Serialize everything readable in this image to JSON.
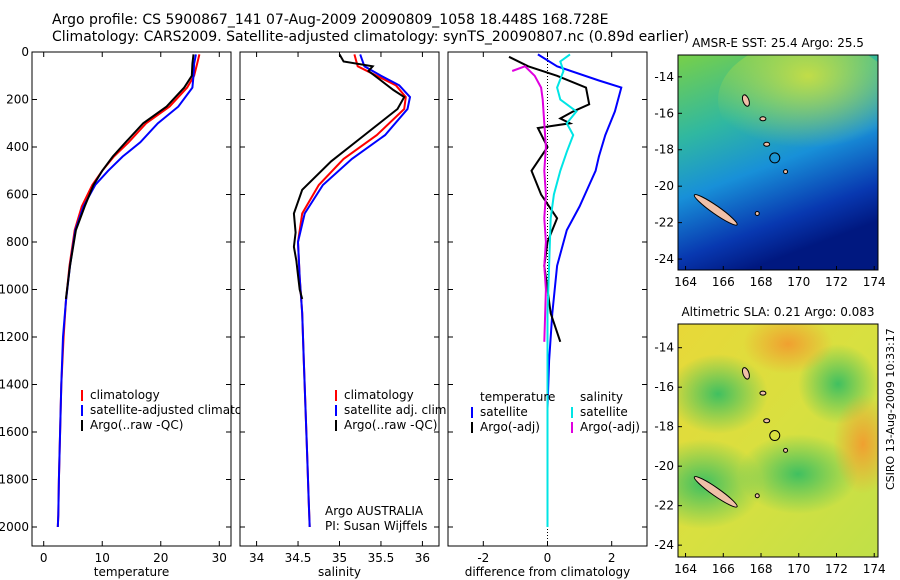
{
  "header": {
    "line1": "Argo profile: CS 5900867_141 07-Aug-2009 20090809_1058 18.448S 168.728E",
    "line2": "Climatology: CARS2009. Satellite-adjusted climatology: synTS_20090807.nc (0.89d earlier)"
  },
  "side_label": "CSIRO 13-Aug-2009 10:33:17",
  "colors": {
    "red": "#ff0000",
    "blue": "#0000ff",
    "black": "#000000",
    "cyan": "#00e5e5",
    "magenta": "#e000e0"
  },
  "chart_data": [
    {
      "type": "line",
      "xlabel": "temperature",
      "ylabel": "",
      "xlim": [
        -2,
        32
      ],
      "ylim": [
        2080,
        0
      ],
      "xticks": [
        0,
        10,
        20,
        30
      ],
      "yticks": [
        0,
        200,
        400,
        600,
        800,
        1000,
        1200,
        1400,
        1600,
        1800,
        2000
      ],
      "legend_position": "lower-middle",
      "series": [
        {
          "name": "climatology",
          "color": "#ff0000",
          "x": [
            26.6,
            26.2,
            25.7,
            24.5,
            21.5,
            17.5,
            14.5,
            12.0,
            10.0,
            8.3,
            6.5,
            5.3,
            4.4,
            3.8,
            3.4,
            3.0,
            2.8,
            2.6,
            2.5,
            2.4
          ],
          "y": [
            10,
            50,
            100,
            150,
            230,
            300,
            380,
            440,
            500,
            560,
            650,
            750,
            900,
            1050,
            1200,
            1400,
            1600,
            1800,
            1950,
            2000
          ]
        },
        {
          "name": "satellite-adjusted climatology",
          "color": "#0000ff",
          "x": [
            26.0,
            25.7,
            25.6,
            25.4,
            23.0,
            19.5,
            16.5,
            13.5,
            11.0,
            8.8,
            6.8,
            5.4,
            4.5,
            3.8,
            3.3,
            3.0,
            2.8,
            2.6,
            2.5,
            2.4
          ],
          "y": [
            10,
            50,
            100,
            150,
            230,
            300,
            380,
            440,
            500,
            560,
            650,
            750,
            900,
            1050,
            1200,
            1400,
            1600,
            1800,
            1950,
            2000
          ]
        },
        {
          "name": "Argo(..raw -QC)",
          "color": "#000000",
          "x": [
            25.6,
            25.4,
            25.3,
            24.0,
            21.0,
            17.0,
            14.0,
            11.8,
            10.0,
            8.5,
            7.0,
            5.5,
            4.5,
            3.8
          ],
          "y": [
            10,
            50,
            100,
            150,
            230,
            300,
            380,
            440,
            500,
            560,
            650,
            750,
            900,
            1040
          ]
        }
      ]
    },
    {
      "type": "line",
      "xlabel": "salinity",
      "xlim": [
        33.8,
        36.2
      ],
      "ylim": [
        2080,
        0
      ],
      "xticks": [
        34,
        34.5,
        35,
        35.5,
        36
      ],
      "xticklabels": [
        "34",
        "34.5",
        "35",
        "35.5",
        "36"
      ],
      "yticks": [
        0,
        200,
        400,
        600,
        800,
        1000,
        1200,
        1400,
        1600,
        1800,
        2000
      ],
      "annotations": [
        "Argo AUSTRALIA",
        "PI: Susan Wijffels"
      ],
      "legend_position": "lower-right",
      "series": [
        {
          "name": "climatology",
          "color": "#ff0000",
          "x": [
            35.18,
            35.22,
            35.45,
            35.68,
            35.8,
            35.78,
            35.45,
            35.05,
            34.75,
            34.55,
            34.5,
            34.52,
            34.55,
            34.57,
            34.59,
            34.61,
            34.63,
            34.64
          ],
          "y": [
            10,
            60,
            100,
            140,
            190,
            240,
            350,
            450,
            560,
            680,
            800,
            950,
            1100,
            1300,
            1500,
            1700,
            1900,
            2000
          ]
        },
        {
          "name": "satellite adj. clim.",
          "color": "#0000ff",
          "x": [
            35.25,
            35.3,
            35.5,
            35.72,
            35.85,
            35.82,
            35.55,
            35.15,
            34.8,
            34.58,
            34.5,
            34.52,
            34.55,
            34.57,
            34.59,
            34.61,
            34.63,
            34.64
          ],
          "y": [
            10,
            60,
            100,
            140,
            190,
            240,
            350,
            450,
            560,
            680,
            800,
            950,
            1100,
            1300,
            1500,
            1700,
            1900,
            2000
          ]
        },
        {
          "name": "Argo(..raw -QC)",
          "color": "#000000",
          "x": [
            35.0,
            35.05,
            35.4,
            35.35,
            35.5,
            35.65,
            35.78,
            35.7,
            35.3,
            34.9,
            34.55,
            34.45,
            34.47,
            34.45,
            34.48,
            34.5,
            34.52,
            34.55
          ],
          "y": [
            10,
            40,
            60,
            80,
            120,
            160,
            190,
            240,
            350,
            460,
            580,
            680,
            760,
            820,
            880,
            940,
            1000,
            1040
          ]
        }
      ]
    },
    {
      "type": "line",
      "xlabel": "difference from climatology",
      "xlim": [
        -3.1,
        3.1
      ],
      "ylim": [
        2080,
        0
      ],
      "xticks": [
        -2,
        0,
        2
      ],
      "yticks": [
        0,
        200,
        400,
        600,
        800,
        1000,
        1200,
        1400,
        1600,
        1800,
        2000
      ],
      "legend_position": "lower",
      "legend_groups": [
        {
          "title": "temperature",
          "entries": [
            "satellite",
            "Argo(-adj)"
          ]
        },
        {
          "title": "salinity",
          "entries": [
            "satellite",
            "Argo(-adj)"
          ]
        }
      ],
      "series": [
        {
          "name": "satellite",
          "group": "temperature",
          "color": "#0000ff",
          "x": [
            -0.3,
            0.3,
            1.6,
            2.3,
            2.1,
            1.8,
            1.6,
            1.5,
            1.3,
            1.0,
            0.6,
            0.3,
            0.15,
            0.05,
            0.0,
            0.0,
            0.0
          ],
          "y": [
            10,
            60,
            120,
            150,
            250,
            350,
            440,
            500,
            560,
            650,
            750,
            900,
            1100,
            1300,
            1500,
            1800,
            2000
          ]
        },
        {
          "name": "Argo(-adj)",
          "group": "temperature",
          "color": "#000000",
          "x": [
            -1.2,
            -0.6,
            0.3,
            1.2,
            1.3,
            0.8,
            0.4,
            0.7,
            -0.3,
            0.0,
            -0.5,
            -0.2,
            0.3,
            0.0,
            -0.1,
            0.0,
            0.1,
            0.4
          ],
          "y": [
            20,
            60,
            100,
            150,
            220,
            250,
            280,
            300,
            320,
            400,
            500,
            600,
            700,
            800,
            900,
            1000,
            1100,
            1220
          ]
        },
        {
          "name": "satellite",
          "group": "salinity",
          "color": "#00e5e5",
          "x": [
            0.7,
            0.4,
            0.5,
            0.3,
            0.4,
            0.9,
            0.6,
            0.8,
            0.6,
            0.4,
            0.2,
            0.1,
            0.05,
            0.0,
            0.0,
            0.0,
            0.0
          ],
          "y": [
            10,
            40,
            80,
            150,
            200,
            250,
            300,
            350,
            420,
            500,
            600,
            700,
            900,
            1100,
            1400,
            1700,
            2000
          ]
        },
        {
          "name": "Argo(-adj)",
          "group": "salinity",
          "color": "#e000e0",
          "x": [
            -1.1,
            -0.7,
            -0.4,
            -0.2,
            -0.15,
            -0.1,
            -0.05,
            -0.1,
            -0.05,
            -0.1,
            -0.05,
            -0.1,
            -0.05,
            -0.1
          ],
          "y": [
            80,
            60,
            100,
            150,
            200,
            300,
            400,
            500,
            600,
            700,
            800,
            900,
            1000,
            1220
          ]
        }
      ]
    },
    {
      "type": "heatmap",
      "title": "AMSR-E SST: 25.4 Argo: 25.5",
      "xlim": [
        163.6,
        174.2
      ],
      "ylim": [
        -24.6,
        -12.8
      ],
      "xticks": [
        164,
        166,
        168,
        170,
        172,
        174
      ],
      "yticks": [
        -14,
        -16,
        -18,
        -20,
        -22,
        -24
      ],
      "yticklabels": [
        "-14",
        "-16",
        "-18",
        "-20",
        "-22",
        "-24"
      ],
      "marker": {
        "lon": 168.728,
        "lat": -18.448
      }
    },
    {
      "type": "heatmap",
      "title": "Altimetric SLA: 0.21 Argo: 0.083",
      "xlim": [
        163.6,
        174.2
      ],
      "ylim": [
        -24.6,
        -12.8
      ],
      "xticks": [
        164,
        166,
        168,
        170,
        172,
        174
      ],
      "yticks": [
        -14,
        -16,
        -18,
        -20,
        -22,
        -24
      ],
      "yticklabels": [
        "-14",
        "-16",
        "-18",
        "-20",
        "-22",
        "-24"
      ],
      "marker": {
        "lon": 168.728,
        "lat": -18.448
      }
    }
  ]
}
